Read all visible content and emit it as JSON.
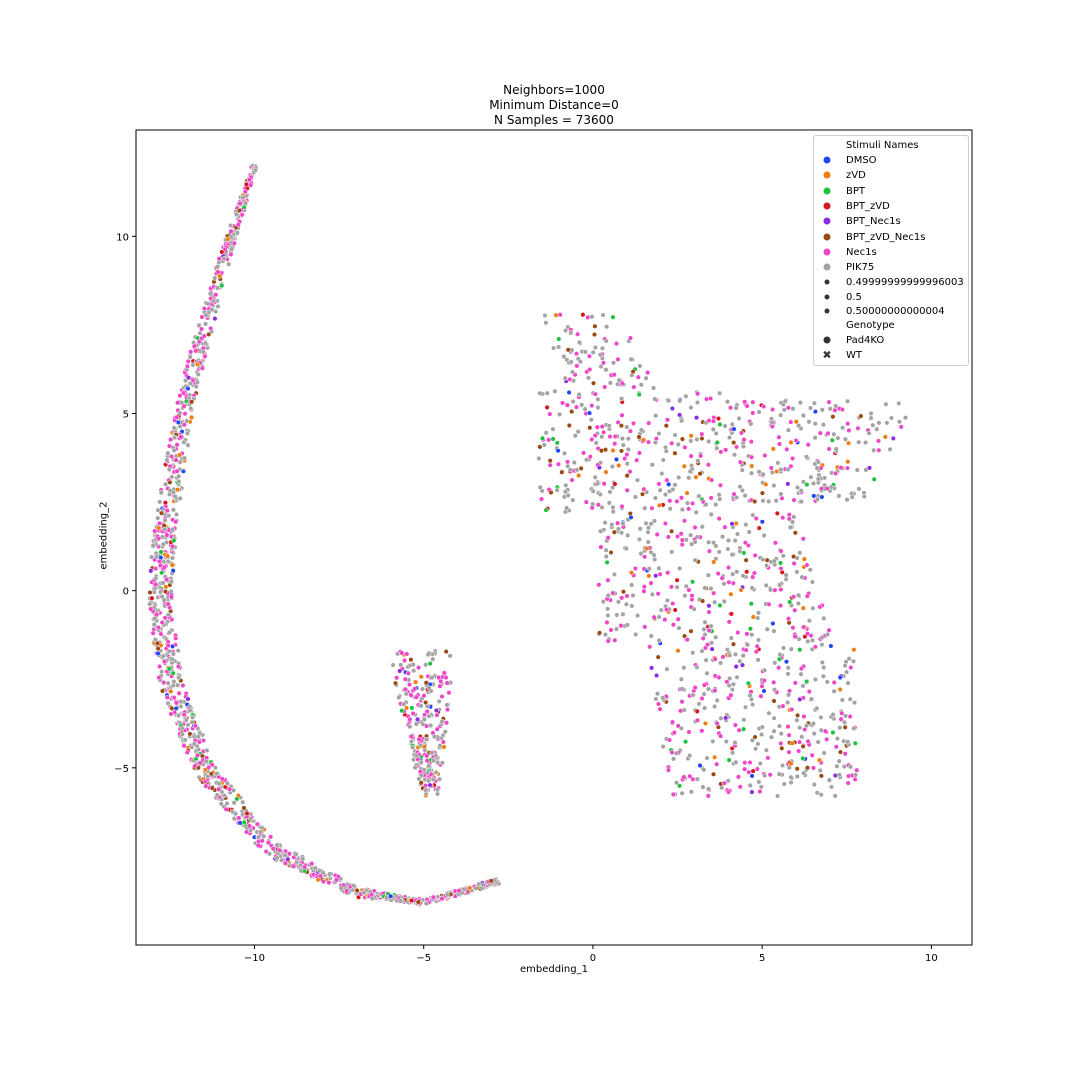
{
  "chart_data": {
    "type": "scatter",
    "title_lines": [
      "Neighbors=1000",
      "Minimum Distance=0",
      "N Samples = 73600"
    ],
    "xlabel": "embedding_1",
    "ylabel": "embedding_2",
    "xlim": [
      -13.5,
      11.2
    ],
    "ylim": [
      -10.0,
      13.0
    ],
    "xticks": [
      -10,
      -5,
      0,
      5,
      10
    ],
    "yticks": [
      -5,
      0,
      5,
      10
    ],
    "xtick_labels": [
      "−10",
      "−5",
      "0",
      "5",
      "10"
    ],
    "ytick_labels": [
      "−5",
      "0",
      "5",
      "10"
    ],
    "legend_placement": "top-right",
    "legend": {
      "hue_title": "Stimuli Names",
      "hue": [
        {
          "name": "DMSO",
          "color": "#1f48f2"
        },
        {
          "name": "zVD",
          "color": "#f07d0f"
        },
        {
          "name": "BPT",
          "color": "#1dc23c"
        },
        {
          "name": "BPT_zVD",
          "color": "#d6141d"
        },
        {
          "name": "BPT_Nec1s",
          "color": "#8a2be2"
        },
        {
          "name": "BPT_zVD_Nec1s",
          "color": "#9a4a11"
        },
        {
          "name": "Nec1s",
          "color": "#f045c8"
        },
        {
          "name": "PIK75",
          "color": "#a3a3a3"
        }
      ],
      "size": [
        "0.49999999999996003",
        "0.5",
        "0.50000000000004"
      ],
      "style_title": "Genotype",
      "style": [
        {
          "name": "Pad4KO",
          "marker": "circle"
        },
        {
          "name": "WT",
          "marker": "x"
        }
      ]
    },
    "clusters": [
      {
        "shape": "arc",
        "description_points": [
          [
            -10.0,
            12.0
          ],
          [
            -11.0,
            9.0
          ],
          [
            -12.0,
            5.5
          ],
          [
            -12.6,
            2.0
          ],
          [
            -12.8,
            0.0
          ],
          [
            -12.5,
            -2.5
          ],
          [
            -11.5,
            -5.0
          ],
          [
            -9.5,
            -7.3
          ],
          [
            -7.0,
            -8.5
          ],
          [
            -5.0,
            -8.8
          ],
          [
            -2.8,
            -8.2
          ]
        ]
      },
      {
        "shape": "island",
        "center": [
          -5.0,
          -3.5
        ]
      },
      {
        "shape": "mainland",
        "center": [
          4.0,
          0.0
        ]
      }
    ]
  }
}
